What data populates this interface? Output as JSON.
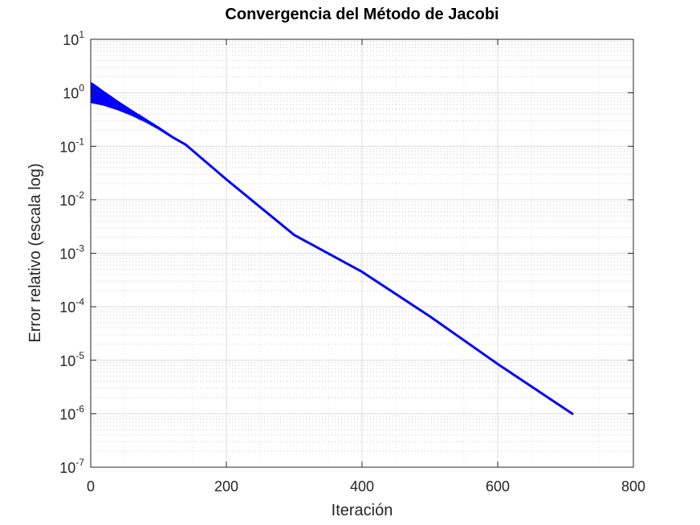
{
  "chart_data": {
    "type": "line",
    "title": "Convergencia del Método de Jacobi",
    "xlabel": "Iteración",
    "ylabel": "Error relativo (escala log)",
    "xlim": [
      0,
      800
    ],
    "ylim": [
      1e-07,
      10
    ],
    "yscale": "log",
    "grid": true,
    "minor_grid": true,
    "legend": "none",
    "x_ticks": [
      0,
      200,
      400,
      600,
      800
    ],
    "x_tick_labels": [
      "0",
      "200",
      "400",
      "600",
      "800"
    ],
    "y_ticks": [
      1e-07,
      1e-06,
      1e-05,
      0.0001,
      0.001,
      0.01,
      0.1,
      1,
      10
    ],
    "y_tick_labels": [
      {
        "base": "10",
        "exp": "-7"
      },
      {
        "base": "10",
        "exp": "-6"
      },
      {
        "base": "10",
        "exp": "-5"
      },
      {
        "base": "10",
        "exp": "-4"
      },
      {
        "base": "10",
        "exp": "-3"
      },
      {
        "base": "10",
        "exp": "-2"
      },
      {
        "base": "10",
        "exp": "-1"
      },
      {
        "base": "10",
        "exp": "0"
      },
      {
        "base": "10",
        "exp": "1"
      }
    ],
    "series": [
      {
        "color": "#0000ff",
        "x": [
          1,
          10,
          20,
          40,
          60,
          80,
          100,
          120,
          140,
          200,
          300,
          400,
          500,
          600,
          710
        ],
        "y_upper": [
          1.55,
          1.3,
          1.05,
          0.7,
          0.48,
          0.33,
          0.23,
          0.155,
          0.11,
          0.024,
          0.0022,
          0.00045,
          6.6e-05,
          8.5e-06,
          1e-06
        ],
        "y_lower": [
          0.65,
          0.62,
          0.58,
          0.48,
          0.38,
          0.29,
          0.21,
          0.145,
          0.105,
          0.024,
          0.0022,
          0.00045,
          6.6e-05,
          8.5e-06,
          1e-06
        ]
      }
    ]
  }
}
